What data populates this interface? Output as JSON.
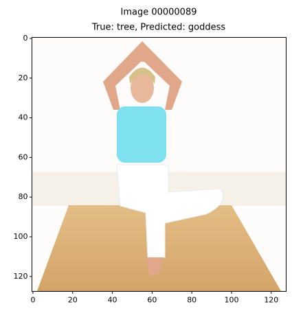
{
  "chart_data": {
    "type": "image",
    "title": "Image 00000089",
    "subtitle": "True: tree, Predicted: goddess",
    "xlim": [
      -0.5,
      127.5
    ],
    "ylim": [
      127.5,
      -0.5
    ],
    "xticks": [
      0,
      20,
      40,
      60,
      80,
      100,
      120
    ],
    "yticks": [
      0,
      20,
      40,
      60,
      80,
      100,
      120
    ]
  }
}
